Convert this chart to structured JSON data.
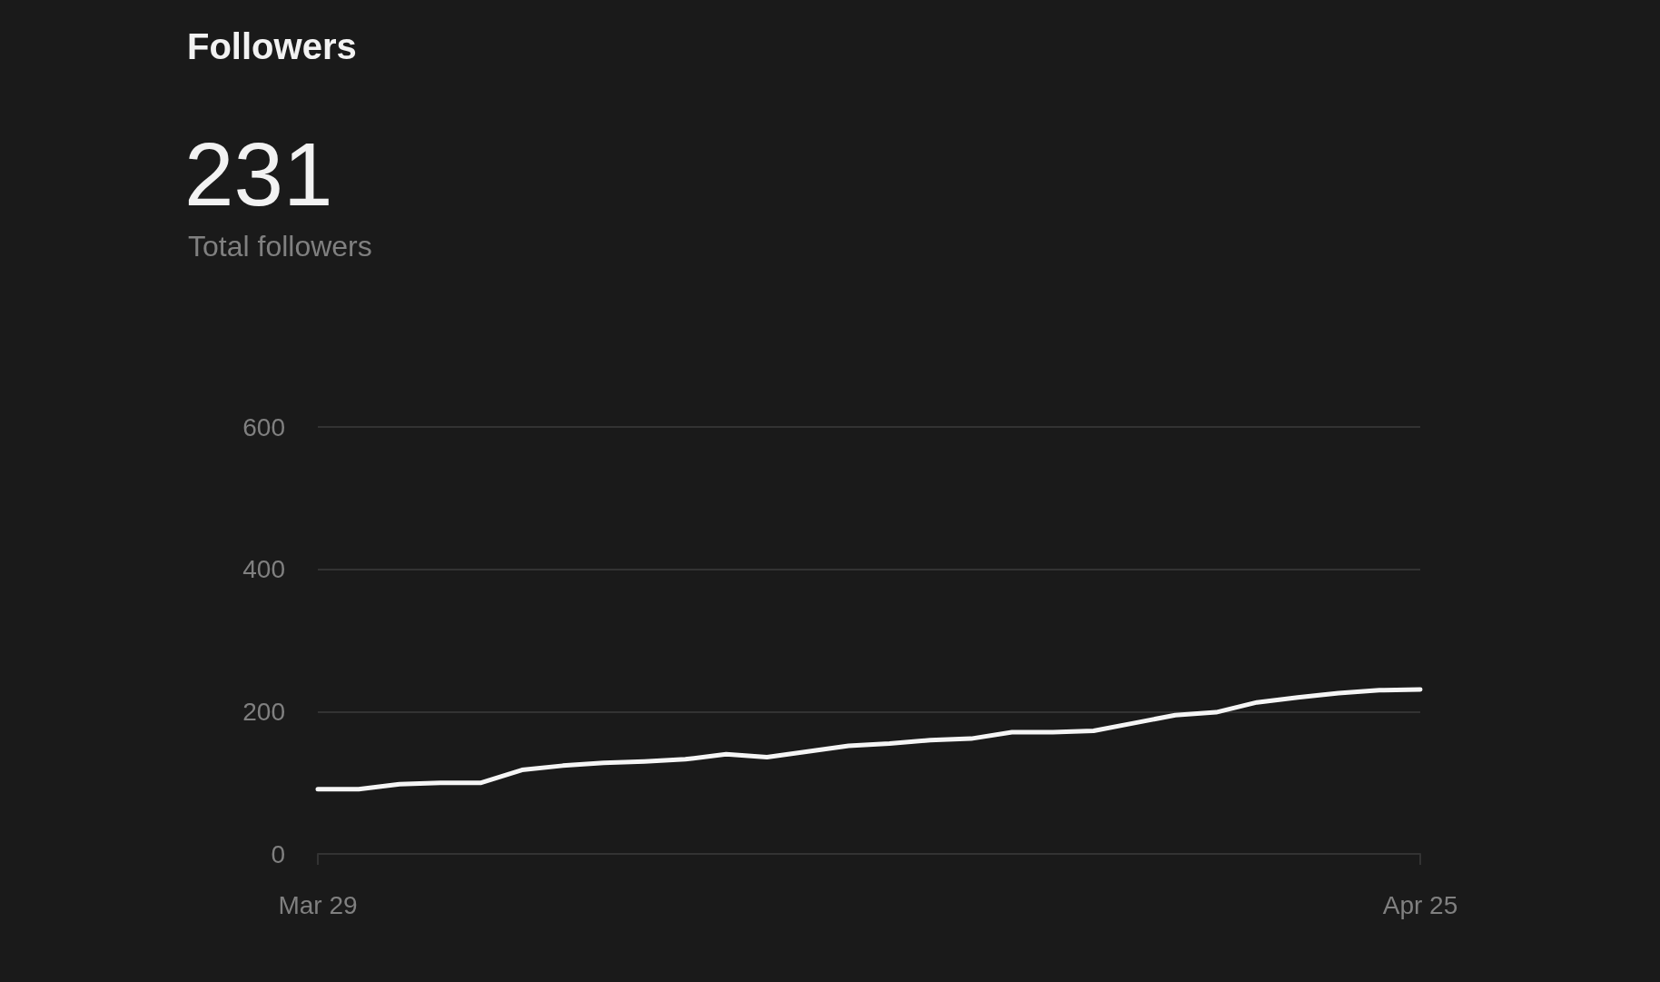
{
  "chart_data": {
    "type": "line",
    "title": "Followers",
    "subtitle": "231",
    "annotations": [
      "Total followers"
    ],
    "x": [
      "--03-29",
      "--03-30",
      "--03-31",
      "--04-01",
      "--04-02",
      "--04-03",
      "--04-04",
      "--04-05",
      "--04-06",
      "--04-07",
      "--04-08",
      "--04-09",
      "--04-10",
      "--04-11",
      "--04-12",
      "--04-13",
      "--04-14",
      "--04-15",
      "--04-16",
      "--04-17",
      "--04-18",
      "--04-19",
      "--04-20",
      "--04-21",
      "--04-22",
      "--04-23",
      "--04-24",
      "--04-25"
    ],
    "values": [
      91,
      91,
      98,
      100,
      100,
      118,
      124,
      128,
      130,
      133,
      140,
      136,
      144,
      152,
      155,
      160,
      162,
      171,
      171,
      173,
      184,
      195,
      199,
      213,
      220,
      226,
      230,
      231
    ],
    "color": "#f5f5f5",
    "xlim": [
      "--03-29",
      "--04-25"
    ],
    "xticks": [
      {
        "value": "--03-29",
        "label": "Mar 29"
      },
      {
        "value": "--04-25",
        "label": "Apr 25"
      }
    ],
    "ylim": [
      0,
      600
    ],
    "yticks": [
      0,
      200,
      400,
      600
    ],
    "grid": "y",
    "marker": "none",
    "line_style": "solid"
  }
}
